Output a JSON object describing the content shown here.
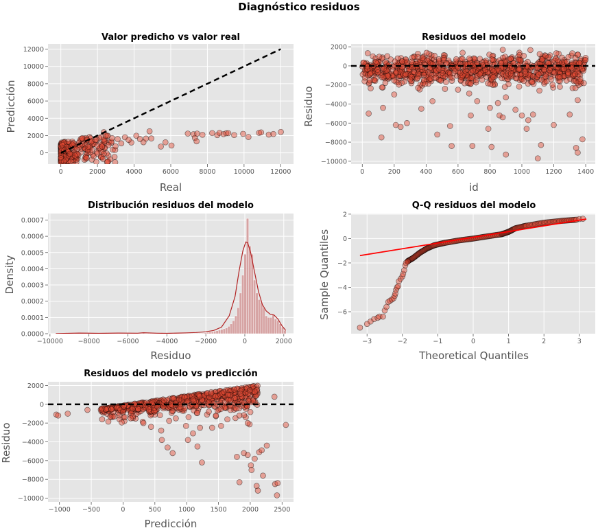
{
  "figure": {
    "suptitle": "Diagnóstico residuos"
  },
  "colors": {
    "panel_bg": "#e5e5e5",
    "grid": "#ffffff",
    "marker_face": "#e24a33",
    "marker_edge": "#000000",
    "hist_bar": "#d6a3a3",
    "kde_line": "#b22222",
    "qq_line": "#ff0000",
    "ref_line": "#000000"
  },
  "chart_data": [
    {
      "id": "pred_vs_real",
      "type": "scatter",
      "title": "Valor predicho vs valor real",
      "xlabel": "Real",
      "ylabel": "Predicción",
      "xlim": [
        -700,
        12700
      ],
      "ylim": [
        -1300,
        12600
      ],
      "xticks": [
        "0",
        "2000",
        "4000",
        "6000",
        "8000",
        "10000",
        "12000"
      ],
      "xtick_values": [
        0,
        2000,
        4000,
        6000,
        8000,
        10000,
        12000
      ],
      "yticks": [
        "0",
        "2000",
        "4000",
        "6000",
        "8000",
        "10000",
        "12000"
      ],
      "ytick_values": [
        0,
        2000,
        4000,
        6000,
        8000,
        10000,
        12000
      ],
      "reference_line": {
        "style": "dashed",
        "from": [
          0,
          0
        ],
        "to": [
          12000,
          12000
        ]
      },
      "points": [
        [
          4843,
          2495
        ],
        [
          4120,
          1980
        ],
        [
          4510,
          1230
        ],
        [
          4940,
          1670
        ],
        [
          5460,
          730
        ],
        [
          5710,
          1220
        ],
        [
          6040,
          850
        ],
        [
          6930,
          2230
        ],
        [
          7240,
          2160
        ],
        [
          7320,
          1720
        ],
        [
          7410,
          1340
        ],
        [
          7440,
          2230
        ],
        [
          7730,
          2090
        ],
        [
          8260,
          2290
        ],
        [
          8540,
          2050
        ],
        [
          8660,
          2310
        ],
        [
          8880,
          2170
        ],
        [
          9030,
          2270
        ],
        [
          9140,
          2280
        ],
        [
          9460,
          2060
        ],
        [
          9950,
          2200
        ],
        [
          10240,
          1830
        ],
        [
          10820,
          2310
        ],
        [
          10930,
          2370
        ],
        [
          11350,
          2110
        ],
        [
          11600,
          2180
        ],
        [
          12010,
          2420
        ],
        [
          2350,
          2400
        ],
        [
          3100,
          1600
        ],
        [
          3500,
          1800
        ],
        [
          2600,
          900
        ],
        [
          3850,
          1200
        ],
        [
          1900,
          1500
        ],
        [
          2800,
          1700
        ],
        [
          3300,
          1100
        ],
        [
          2450,
          2000
        ],
        [
          1500,
          700
        ],
        [
          3700,
          1500
        ],
        [
          4320,
          1600
        ],
        [
          4650,
          1650
        ]
      ],
      "dense_cloud": {
        "x_range": [
          0,
          3000
        ],
        "y_range": [
          -1100,
          2100
        ],
        "count": 260,
        "cap_slope": 0.45,
        "cap_base": 900
      }
    },
    {
      "id": "resid_vs_id",
      "type": "scatter",
      "title": "Residuos del modelo",
      "xlabel": "id",
      "ylabel": "Residuo",
      "xlim": [
        -70,
        1460
      ],
      "ylim": [
        -10300,
        2300
      ],
      "xticks": [
        "0",
        "200",
        "400",
        "600",
        "800",
        "1000",
        "1200",
        "1400"
      ],
      "xtick_values": [
        0,
        200,
        400,
        600,
        800,
        1000,
        1200,
        1400
      ],
      "yticks": [
        "2000",
        "0",
        "−2000",
        "−4000",
        "−6000",
        "−8000",
        "−10000"
      ],
      "ytick_values": [
        2000,
        0,
        -2000,
        -4000,
        -6000,
        -8000,
        -10000
      ],
      "reference_line": {
        "style": "dashed",
        "y": 0
      },
      "points": [
        [
          40,
          -5000
        ],
        [
          120,
          -7500
        ],
        [
          130,
          -4400
        ],
        [
          210,
          -6200
        ],
        [
          240,
          -6400
        ],
        [
          280,
          -6000
        ],
        [
          370,
          -4500
        ],
        [
          470,
          -7200
        ],
        [
          550,
          -6300
        ],
        [
          560,
          -8400
        ],
        [
          680,
          -5200
        ],
        [
          690,
          -8400
        ],
        [
          720,
          -3700
        ],
        [
          790,
          -6600
        ],
        [
          800,
          -4400
        ],
        [
          810,
          -8500
        ],
        [
          850,
          -3900
        ],
        [
          860,
          -5200
        ],
        [
          880,
          -5400
        ],
        [
          900,
          -9300
        ],
        [
          960,
          -4600
        ],
        [
          1000,
          -5200
        ],
        [
          1030,
          -6600
        ],
        [
          1070,
          -5100
        ],
        [
          1100,
          -9700
        ],
        [
          1120,
          -8300
        ],
        [
          1200,
          -6200
        ],
        [
          1300,
          -5100
        ],
        [
          1340,
          -8600
        ],
        [
          1350,
          -9100
        ],
        [
          1350,
          -3600
        ],
        [
          1380,
          -7700
        ],
        [
          1040,
          -5700
        ],
        [
          1110,
          -2600
        ],
        [
          440,
          -3700
        ],
        [
          670,
          -2900
        ],
        [
          900,
          -3300
        ],
        [
          200,
          -3000
        ],
        [
          600,
          -2500
        ]
      ],
      "dense_band": {
        "n": 1400,
        "y_range": [
          -2500,
          2000
        ],
        "count": 950
      }
    },
    {
      "id": "resid_dist",
      "type": "histogram",
      "title": "Distribución residuos del modelo",
      "xlabel": "Residuo",
      "ylabel": "Density",
      "xlim": [
        -10100,
        2500
      ],
      "ylim": [
        0,
        0.00074
      ],
      "xticks": [
        "−10000",
        "−8000",
        "−6000",
        "−4000",
        "−2000",
        "0",
        "2000"
      ],
      "xtick_values": [
        -10000,
        -8000,
        -6000,
        -4000,
        -2000,
        0,
        2000
      ],
      "yticks": [
        "0.0000",
        "0.0001",
        "0.0002",
        "0.0003",
        "0.0004",
        "0.0005",
        "0.0006",
        "0.0007"
      ],
      "ytick_values": [
        0,
        0.0001,
        0.0002,
        0.0003,
        0.0004,
        0.0005,
        0.0006,
        0.0007
      ],
      "bin_start": -9700,
      "bin_width": 120,
      "right_bins": [
        [
          -2200,
          3e-06
        ],
        [
          -2080,
          5e-06
        ],
        [
          -1960,
          8e-06
        ],
        [
          -1840,
          1e-05
        ],
        [
          -1720,
          1.2e-05
        ],
        [
          -1600,
          1.5e-05
        ],
        [
          -1480,
          1.8e-05
        ],
        [
          -1360,
          2.2e-05
        ],
        [
          -1240,
          2.6e-05
        ],
        [
          -1120,
          3e-05
        ],
        [
          -1000,
          3.5e-05
        ],
        [
          -880,
          4.5e-05
        ],
        [
          -760,
          6e-05
        ],
        [
          -640,
          8e-05
        ],
        [
          -520,
          0.00011
        ],
        [
          -400,
          0.00016
        ],
        [
          -280,
          0.00025
        ],
        [
          -160,
          0.00036
        ],
        [
          -40,
          0.00049
        ],
        [
          80,
          0.00071
        ],
        [
          200,
          0.00054
        ],
        [
          320,
          0.00049
        ],
        [
          440,
          0.00033
        ],
        [
          560,
          0.00025
        ],
        [
          680,
          0.00021
        ],
        [
          800,
          0.00019
        ],
        [
          920,
          0.00016
        ],
        [
          1040,
          0.00011
        ],
        [
          1160,
          0.0001
        ],
        [
          1280,
          0.0001
        ],
        [
          1400,
          0.00012
        ],
        [
          1520,
          9e-05
        ],
        [
          1640,
          8e-05
        ],
        [
          1760,
          6e-05
        ],
        [
          1880,
          4e-05
        ],
        [
          2000,
          2e-05
        ]
      ],
      "kde": [
        [
          -9700,
          1e-06
        ],
        [
          -8500,
          4e-06
        ],
        [
          -7500,
          2e-06
        ],
        [
          -6500,
          4e-06
        ],
        [
          -5500,
          3e-06
        ],
        [
          -5200,
          6e-06
        ],
        [
          -4500,
          3e-06
        ],
        [
          -4000,
          2e-06
        ],
        [
          -3000,
          5e-06
        ],
        [
          -2500,
          7e-06
        ],
        [
          -2000,
          1.2e-05
        ],
        [
          -1600,
          2e-05
        ],
        [
          -1200,
          4e-05
        ],
        [
          -800,
          0.00011
        ],
        [
          -500,
          0.00023
        ],
        [
          -300,
          0.00038
        ],
        [
          -100,
          0.00051
        ],
        [
          50,
          0.000565
        ],
        [
          150,
          0.00056
        ],
        [
          300,
          0.0005
        ],
        [
          500,
          0.00038
        ],
        [
          700,
          0.00026
        ],
        [
          900,
          0.00018
        ],
        [
          1100,
          0.00014
        ],
        [
          1300,
          0.00012
        ],
        [
          1500,
          0.000115
        ],
        [
          1700,
          9e-05
        ],
        [
          1900,
          5e-05
        ],
        [
          2100,
          2e-05
        ]
      ]
    },
    {
      "id": "qq",
      "type": "scatter",
      "title": "Q-Q residuos del modelo",
      "xlabel": "Theoretical Quantiles",
      "ylabel": "Sample Quantiles",
      "xlim": [
        -3.45,
        3.45
      ],
      "ylim": [
        -7.8,
        2.05
      ],
      "xticks": [
        "−3",
        "−2",
        "−1",
        "0",
        "1",
        "2",
        "3"
      ],
      "xtick_values": [
        -3,
        -2,
        -1,
        0,
        1,
        2,
        3
      ],
      "yticks": [
        "2",
        "0",
        "−2",
        "−4",
        "−6"
      ],
      "ytick_values": [
        2,
        0,
        -2,
        -4,
        -6
      ],
      "fit_line": {
        "from": [
          -3.2,
          -1.4
        ],
        "to": [
          3.2,
          1.6
        ]
      },
      "points": [
        [
          -3.2,
          -7.3
        ],
        [
          -3.0,
          -7.0
        ],
        [
          -2.9,
          -6.8
        ],
        [
          -2.8,
          -6.6
        ],
        [
          -2.7,
          -6.5
        ],
        [
          -2.65,
          -6.4
        ],
        [
          -2.55,
          -6.4
        ],
        [
          -2.5,
          -5.9
        ],
        [
          -2.45,
          -5.6
        ],
        [
          -2.4,
          -5.2
        ],
        [
          -2.35,
          -5.1
        ],
        [
          -2.3,
          -5.0
        ],
        [
          -2.25,
          -4.9
        ],
        [
          -2.22,
          -4.7
        ],
        [
          -2.2,
          -4.5
        ],
        [
          -2.18,
          -4.2
        ],
        [
          -2.15,
          -4.0
        ],
        [
          -2.12,
          -3.9
        ],
        [
          -2.1,
          -3.5
        ],
        [
          -2.05,
          -3.3
        ],
        [
          -2.0,
          -3.1
        ],
        [
          -1.98,
          -2.9
        ],
        [
          -1.95,
          -2.6
        ],
        [
          -1.92,
          -2.2
        ],
        [
          -1.9,
          -2.0
        ],
        [
          -1.85,
          -1.9
        ],
        [
          3.0,
          1.6
        ],
        [
          3.1,
          1.62
        ]
      ],
      "dense_curve": [
        [
          -1.85,
          -1.85
        ],
        [
          -1.7,
          -1.6
        ],
        [
          -1.5,
          -1.15
        ],
        [
          -1.3,
          -0.8
        ],
        [
          -1.1,
          -0.55
        ],
        [
          -0.8,
          -0.35
        ],
        [
          -0.4,
          -0.15
        ],
        [
          0,
          0.0
        ],
        [
          0.4,
          0.18
        ],
        [
          0.8,
          0.35
        ],
        [
          1.0,
          0.55
        ],
        [
          1.2,
          0.85
        ],
        [
          1.5,
          1.05
        ],
        [
          2.0,
          1.3
        ],
        [
          2.5,
          1.45
        ],
        [
          2.95,
          1.55
        ]
      ]
    },
    {
      "id": "resid_vs_pred",
      "type": "scatter",
      "title": "Residuos del modelo vs predicción",
      "xlabel": "Predicción",
      "ylabel": "Residuo",
      "xlim": [
        -1180,
        2680
      ],
      "ylim": [
        -10400,
        2400
      ],
      "xticks": [
        "−1000",
        "−500",
        "0",
        "500",
        "1000",
        "1500",
        "2000",
        "2500"
      ],
      "xtick_values": [
        -1000,
        -500,
        0,
        500,
        1000,
        1500,
        2000,
        2500
      ],
      "yticks": [
        "2000",
        "0",
        "−2000",
        "−4000",
        "−6000",
        "−8000",
        "−10000"
      ],
      "ytick_values": [
        2000,
        0,
        -2000,
        -4000,
        -6000,
        -8000,
        -10000
      ],
      "reference_line": {
        "style": "dashed",
        "y": 0
      },
      "points": [
        [
          -1050,
          -1100
        ],
        [
          -1020,
          -1200
        ],
        [
          -870,
          -1000
        ],
        [
          -560,
          -600
        ],
        [
          120,
          -1500
        ],
        [
          320,
          -2000
        ],
        [
          440,
          -2400
        ],
        [
          610,
          -3800
        ],
        [
          700,
          -4600
        ],
        [
          780,
          -5200
        ],
        [
          1020,
          -3800
        ],
        [
          1170,
          -4500
        ],
        [
          1240,
          -6200
        ],
        [
          1400,
          -2500
        ],
        [
          1790,
          -5600
        ],
        [
          1830,
          -8300
        ],
        [
          1900,
          -5200
        ],
        [
          1960,
          -5400
        ],
        [
          2010,
          -6500
        ],
        [
          2020,
          -7000
        ],
        [
          2070,
          -5800
        ],
        [
          2100,
          -8700
        ],
        [
          2120,
          -9200
        ],
        [
          2140,
          -5100
        ],
        [
          2180,
          -4900
        ],
        [
          2200,
          -7600
        ],
        [
          2260,
          -4400
        ],
        [
          2390,
          -8500
        ],
        [
          2420,
          -9700
        ],
        [
          2430,
          -8400
        ],
        [
          2560,
          -2200
        ],
        [
          2380,
          800
        ],
        [
          1830,
          -1200
        ],
        [
          1960,
          -2000
        ],
        [
          1640,
          -1600
        ],
        [
          1460,
          -1200
        ],
        [
          990,
          -2300
        ],
        [
          1210,
          -2500
        ],
        [
          830,
          -1500
        ],
        [
          1100,
          -3100
        ],
        [
          600,
          -2800
        ],
        [
          1540,
          -2300
        ]
      ],
      "dense_band": {
        "x_range": [
          -350,
          2120
        ],
        "count": 650
      }
    }
  ]
}
